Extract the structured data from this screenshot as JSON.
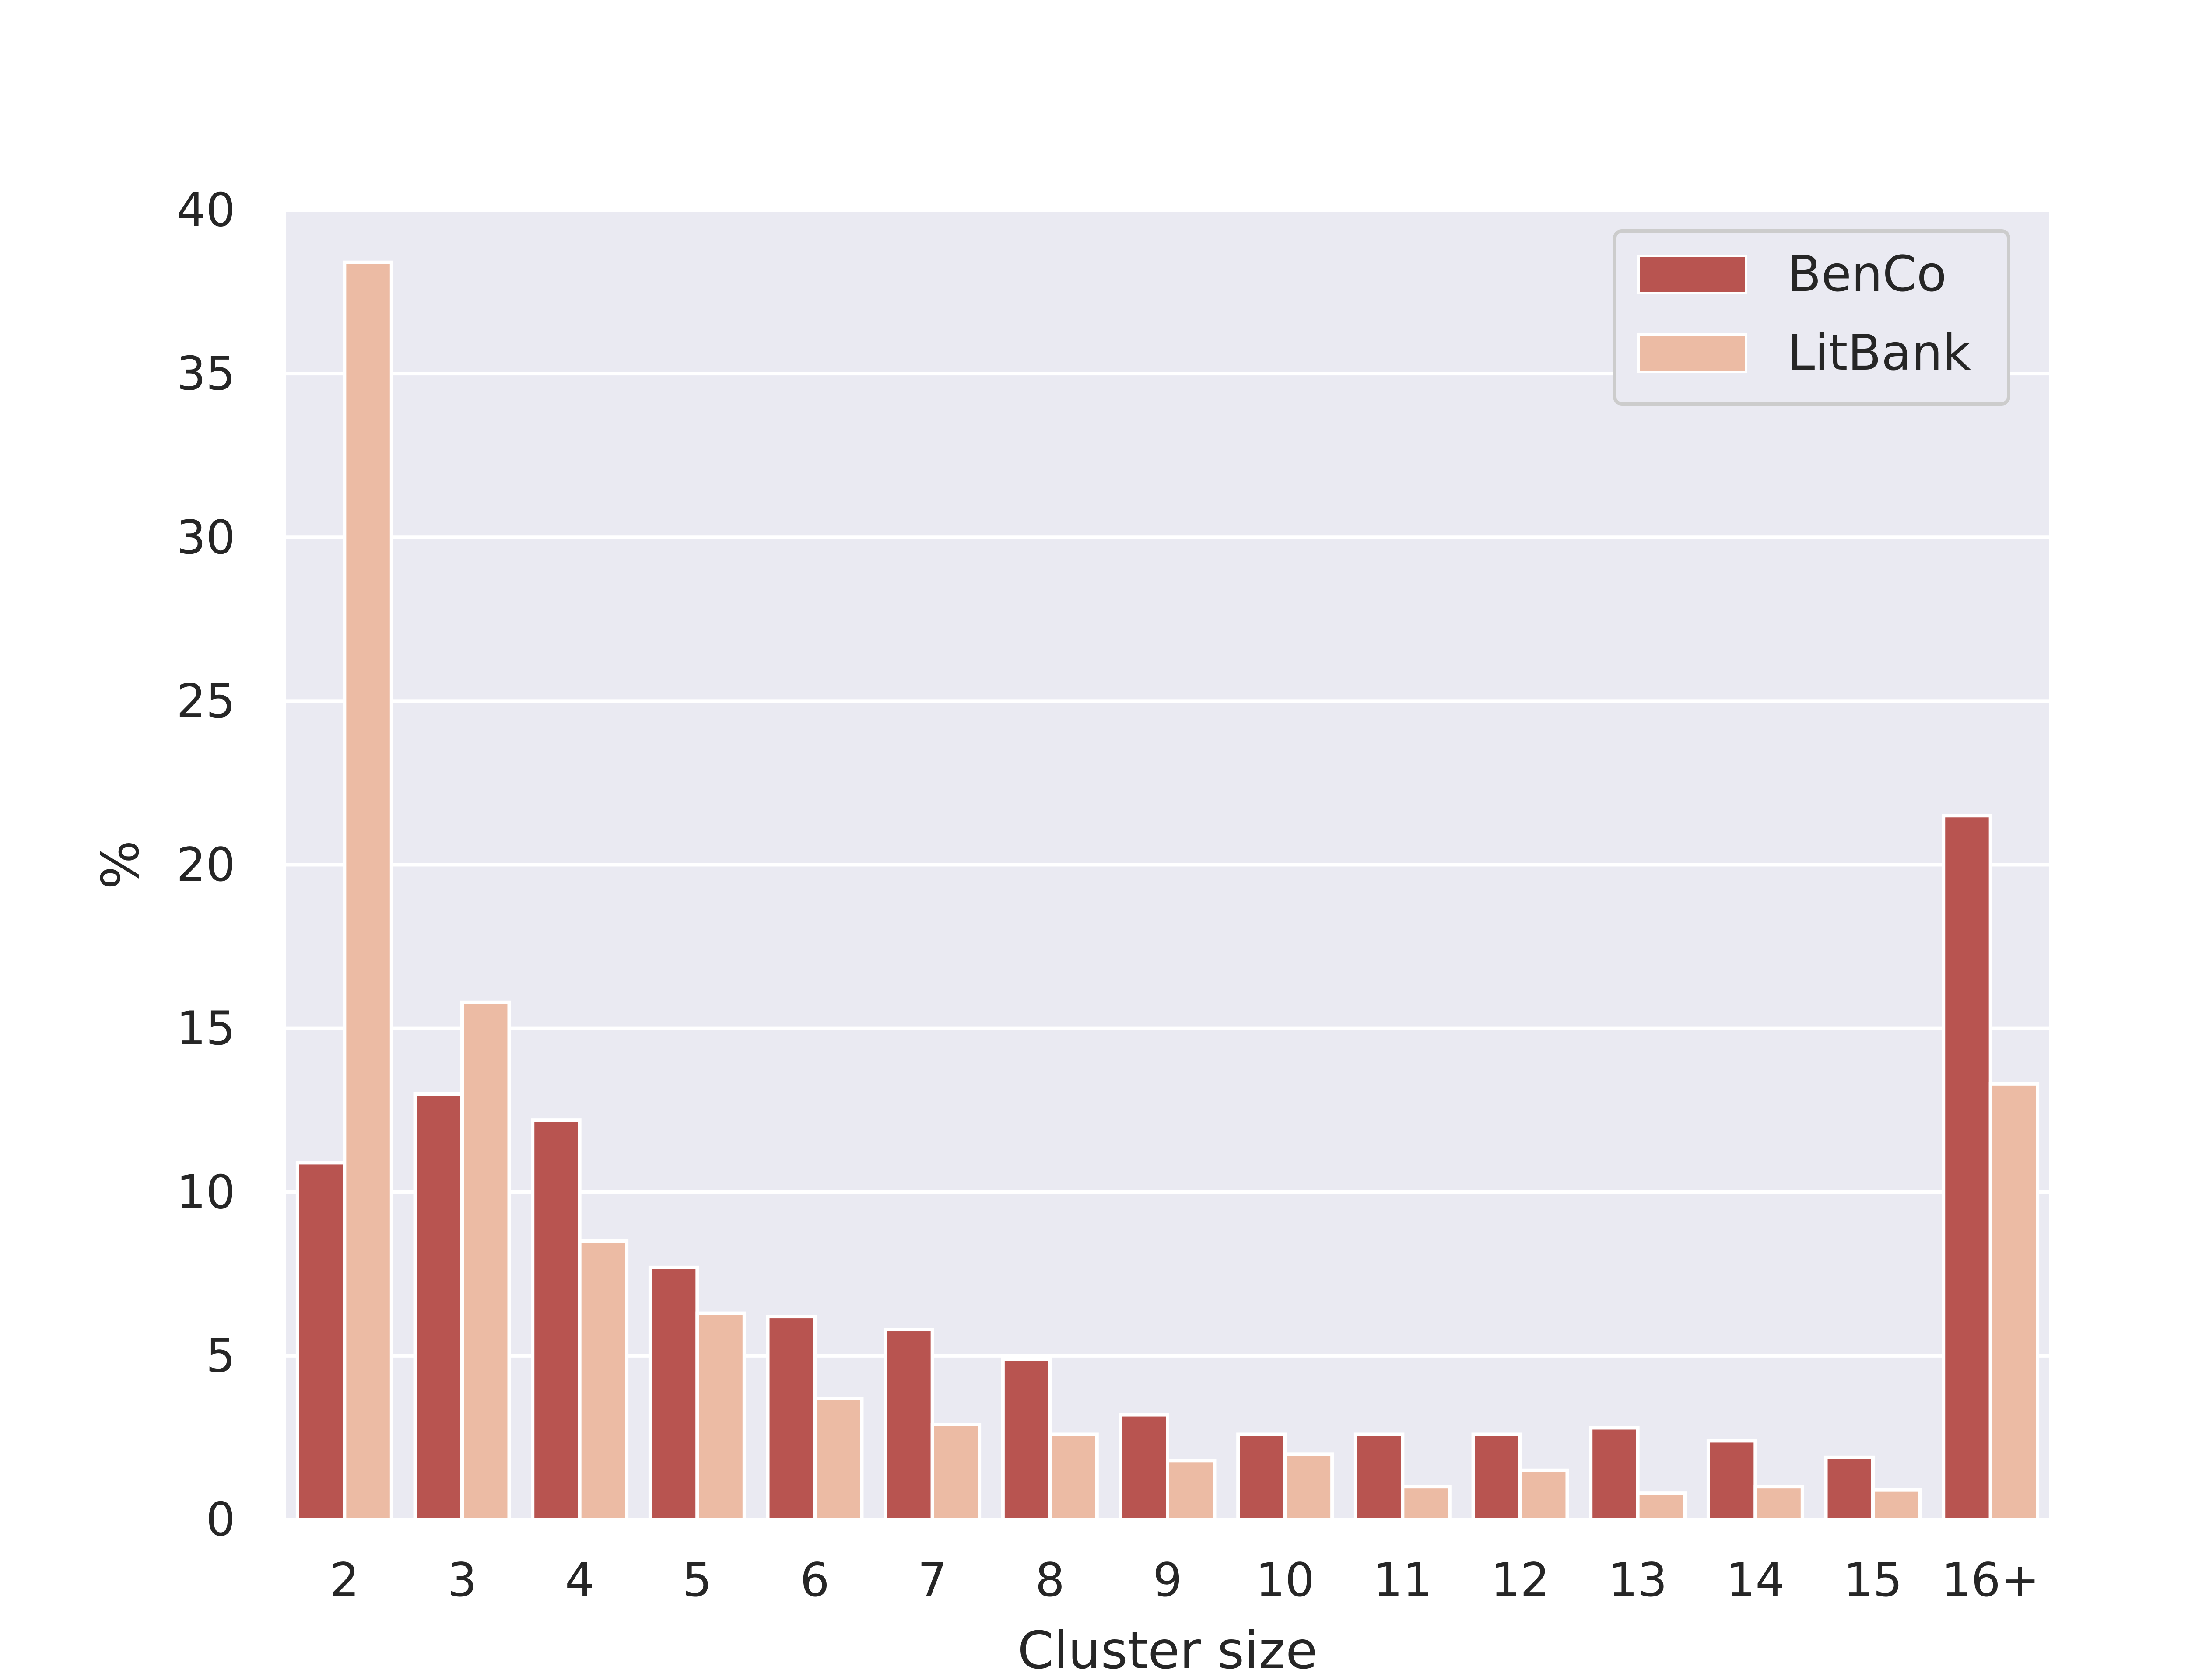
{
  "chart_data": {
    "type": "bar",
    "title": "",
    "xlabel": "Cluster size",
    "ylabel": "%",
    "categories": [
      "2",
      "3",
      "4",
      "5",
      "6",
      "7",
      "8",
      "9",
      "10",
      "11",
      "12",
      "13",
      "14",
      "15",
      "16+"
    ],
    "series": [
      {
        "name": "BenCo",
        "color": "#b85450",
        "values": [
          10.9,
          13.0,
          12.2,
          7.7,
          6.2,
          5.8,
          4.9,
          3.2,
          2.6,
          2.6,
          2.6,
          2.8,
          2.4,
          1.9,
          21.5
        ]
      },
      {
        "name": "LitBank",
        "color": "#ecbba4",
        "values": [
          38.4,
          15.8,
          8.5,
          6.3,
          3.7,
          2.9,
          2.6,
          1.8,
          2.0,
          1.0,
          1.5,
          0.8,
          1.0,
          0.9,
          13.3
        ]
      }
    ],
    "yticks": [
      "0",
      "5",
      "10",
      "15",
      "20",
      "25",
      "30",
      "35",
      "40"
    ],
    "ylim": [
      0,
      40
    ],
    "grid": true,
    "legend_position": "top-right",
    "plot_background": "#eaeaf2"
  }
}
